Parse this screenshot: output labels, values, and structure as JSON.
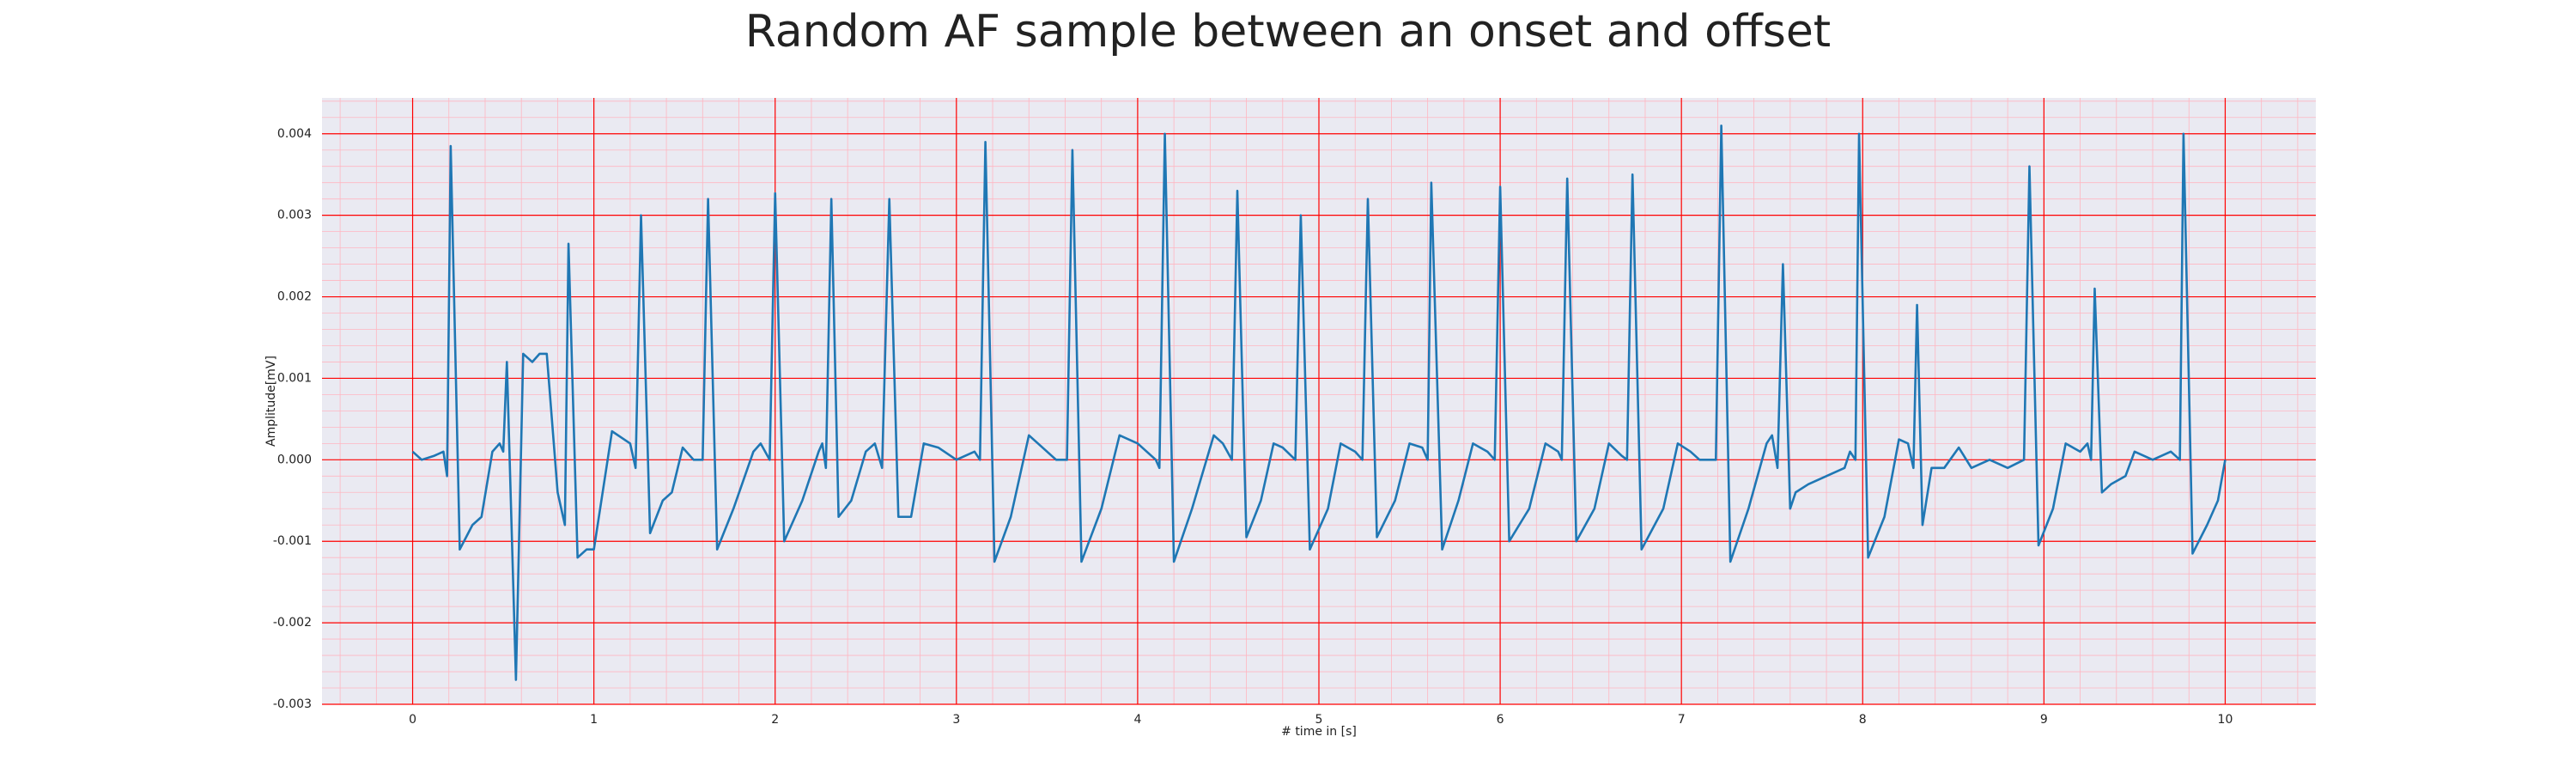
{
  "chart_data": {
    "type": "line",
    "title": "Random AF sample between an onset and offset",
    "xlabel": "# time in [s]",
    "ylabel": "Amplitude[mV]",
    "color": "#1f77b4",
    "x": [
      0,
      0.05,
      0.12,
      0.17,
      0.19,
      0.21,
      0.26,
      0.33,
      0.38,
      0.44,
      0.48,
      0.5,
      0.52,
      0.57,
      0.61,
      0.66,
      0.7,
      0.74,
      0.8,
      0.84,
      0.86,
      0.91,
      0.96,
      1.0,
      1.1,
      1.2,
      1.23,
      1.26,
      1.31,
      1.38,
      1.43,
      1.49,
      1.55,
      1.6,
      1.63,
      1.68,
      1.77,
      1.88,
      1.92,
      1.97,
      2.0,
      2.05,
      2.15,
      2.24,
      2.26,
      2.28,
      2.31,
      2.35,
      2.42,
      2.5,
      2.55,
      2.59,
      2.63,
      2.68,
      2.75,
      2.82,
      2.9,
      3.0,
      3.1,
      3.13,
      3.16,
      3.21,
      3.3,
      3.4,
      3.45,
      3.55,
      3.61,
      3.64,
      3.69,
      3.8,
      3.9,
      4.0,
      4.1,
      4.12,
      4.15,
      4.2,
      4.3,
      4.42,
      4.47,
      4.52,
      4.55,
      4.6,
      4.68,
      4.75,
      4.8,
      4.87,
      4.9,
      4.95,
      5.05,
      5.12,
      5.2,
      5.24,
      5.27,
      5.32,
      5.42,
      5.5,
      5.57,
      5.6,
      5.62,
      5.68,
      5.77,
      5.85,
      5.93,
      5.97,
      6.0,
      6.05,
      6.16,
      6.25,
      6.32,
      6.34,
      6.37,
      6.42,
      6.52,
      6.6,
      6.67,
      6.7,
      6.73,
      6.78,
      6.9,
      6.98,
      7.05,
      7.1,
      7.19,
      7.22,
      7.27,
      7.37,
      7.47,
      7.5,
      7.53,
      7.56,
      7.6,
      7.63,
      7.7,
      7.8,
      7.9,
      7.93,
      7.96,
      7.98,
      8.03,
      8.12,
      8.2,
      8.25,
      8.28,
      8.3,
      8.33,
      8.38,
      8.45,
      8.53,
      8.6,
      8.7,
      8.8,
      8.89,
      8.92,
      8.97,
      9.05,
      9.12,
      9.2,
      9.24,
      9.26,
      9.28,
      9.32,
      9.37,
      9.45,
      9.5,
      9.6,
      9.7,
      9.75,
      9.77,
      9.82,
      9.9,
      9.96,
      10.0
    ],
    "values": [
      0.0001,
      0,
      5e-05,
      0.0001,
      -0.0002,
      0.00385,
      -0.0011,
      -0.0008,
      -0.0007,
      0.0001,
      0.0002,
      0.0001,
      0.0012,
      -0.0027,
      0.0013,
      0.0012,
      0.0013,
      0.0013,
      -0.0004,
      -0.0008,
      0.00265,
      -0.0012,
      -0.0011,
      -0.0011,
      0.00035,
      0.0002,
      -0.0001,
      0.003,
      -0.0009,
      -0.0005,
      -0.0004,
      0.00015,
      0,
      0,
      0.0032,
      -0.0011,
      -0.0006,
      0.0001,
      0.0002,
      0,
      0.00327,
      -0.001,
      -0.0005,
      0.0001,
      0.0002,
      -0.0001,
      0.0032,
      -0.0007,
      -0.0005,
      0.0001,
      0.0002,
      -0.0001,
      0.0032,
      -0.0007,
      -0.0007,
      0.0002,
      0.00015,
      0,
      0.0001,
      0,
      0.0039,
      -0.00125,
      -0.0007,
      0.0003,
      0.0002,
      0,
      0,
      0.0038,
      -0.00125,
      -0.0006,
      0.0003,
      0.0002,
      0,
      -0.0001,
      0.004,
      -0.00125,
      -0.0006,
      0.0003,
      0.0002,
      0,
      0.0033,
      -0.00095,
      -0.0005,
      0.0002,
      0.00015,
      0,
      0.003,
      -0.0011,
      -0.0006,
      0.0002,
      0.0001,
      0,
      0.0032,
      -0.00095,
      -0.0005,
      0.0002,
      0.00015,
      0,
      0.0034,
      -0.0011,
      -0.0005,
      0.0002,
      0.0001,
      0,
      0.00335,
      -0.001,
      -0.0006,
      0.0002,
      0.0001,
      0,
      0.00345,
      -0.001,
      -0.0006,
      0.0002,
      5e-05,
      0,
      0.0035,
      -0.0011,
      -0.0006,
      0.0002,
      0.0001,
      0,
      0,
      0.0041,
      -0.00125,
      -0.0006,
      0.0002,
      0.0003,
      -0.0001,
      0.0024,
      -0.0006,
      -0.0004,
      -0.0003,
      -0.0002,
      -0.0001,
      0.0001,
      0,
      0.004,
      -0.0012,
      -0.0007,
      0.00025,
      0.0002,
      -0.0001,
      0.0019,
      -0.0008,
      -0.0001,
      -0.0001,
      0.00015,
      -0.0001,
      0,
      -0.0001,
      0,
      0.0036,
      -0.00105,
      -0.0006,
      0.0002,
      0.0001,
      0.0002,
      0,
      0.0021,
      -0.0004,
      -0.0003,
      -0.0002,
      0.0001,
      0,
      0.0001,
      0,
      0.004,
      -0.00115,
      -0.0008,
      -0.0005,
      0
    ],
    "xlim": [
      -0.5,
      10.5
    ],
    "ylim": [
      -0.003,
      0.00444
    ],
    "xticks": [
      0,
      1,
      2,
      3,
      4,
      5,
      6,
      7,
      8,
      9,
      10
    ],
    "yticks": [
      -0.003,
      -0.002,
      -0.001,
      {
        "value": 0,
        "label": "0.000"
      },
      0.001,
      0.002,
      0.003,
      0.004
    ],
    "grid": true,
    "grid_color": "#ff0000",
    "minor_grid": true,
    "minor_grid_color": "#ffb6c1",
    "minor_grid_divisions": 5
  }
}
